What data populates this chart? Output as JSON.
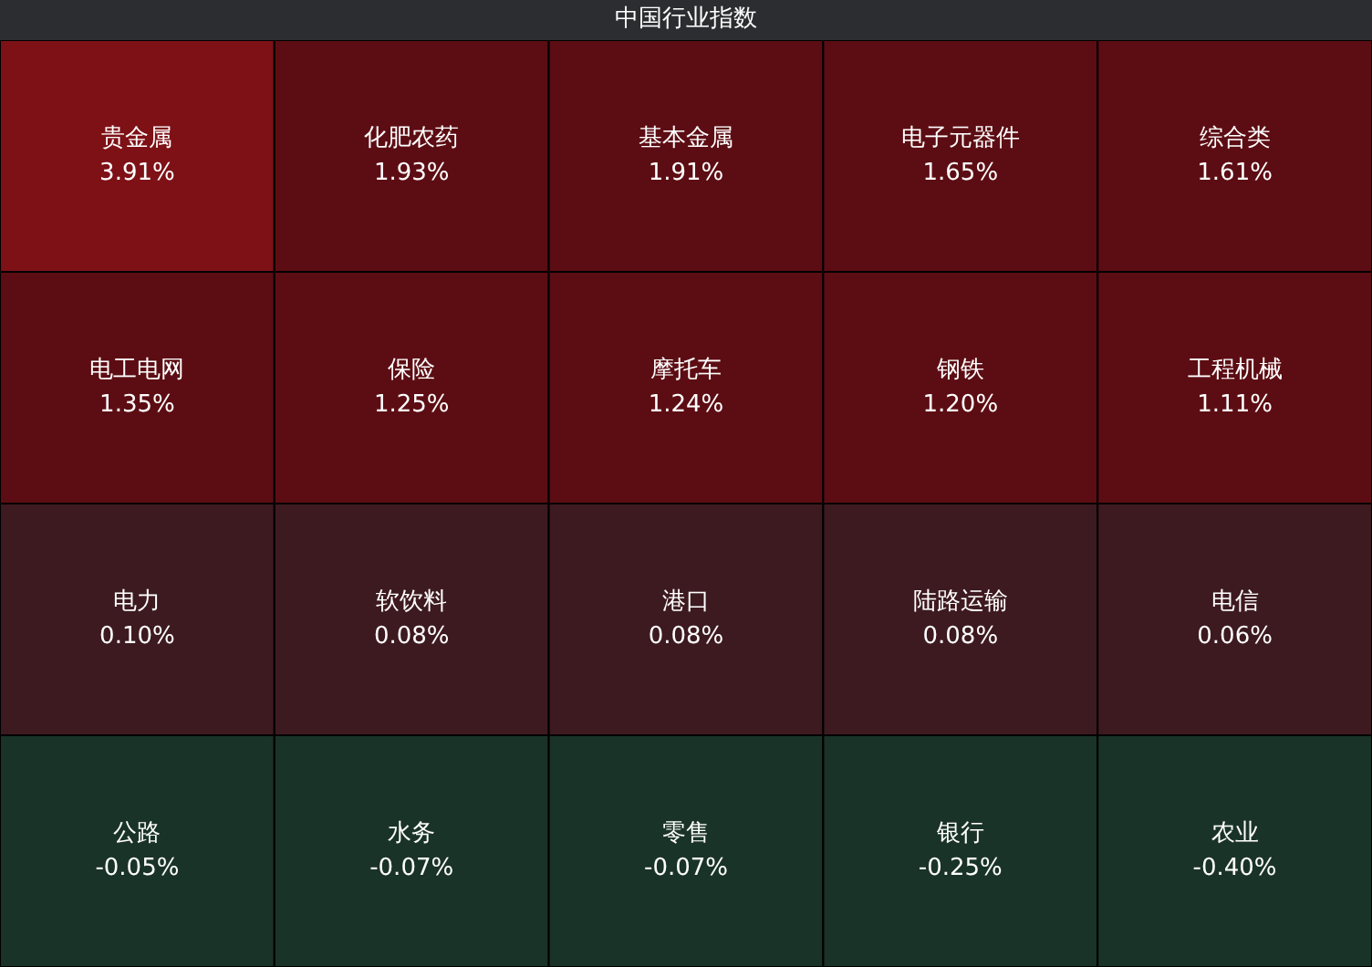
{
  "chart_data": {
    "type": "other",
    "title": "中国行业指数",
    "categories": [
      "贵金属",
      "化肥农药",
      "基本金属",
      "电子元器件",
      "综合类",
      "电工电网",
      "保险",
      "摩托车",
      "钢铁",
      "工程机械",
      "电力",
      "软饮料",
      "港口",
      "陆路运输",
      "电信",
      "公路",
      "水务",
      "零售",
      "银行",
      "农业"
    ],
    "values": [
      3.91,
      1.93,
      1.91,
      1.65,
      1.61,
      1.35,
      1.25,
      1.24,
      1.2,
      1.11,
      0.1,
      0.08,
      0.08,
      0.08,
      0.06,
      -0.05,
      -0.07,
      -0.07,
      -0.25,
      -0.4
    ],
    "value_labels": [
      "3.91%",
      "1.93%",
      "1.91%",
      "1.65%",
      "1.61%",
      "1.35%",
      "1.25%",
      "1.24%",
      "1.20%",
      "1.11%",
      "0.10%",
      "0.08%",
      "0.08%",
      "0.08%",
      "0.06%",
      "-0.05%",
      "-0.07%",
      "-0.07%",
      "-0.25%",
      "-0.40%"
    ],
    "colors": [
      "#7e1116",
      "#5c0d13",
      "#5c0d13",
      "#5c0d13",
      "#5c0d13",
      "#5c0d13",
      "#5c0d13",
      "#5c0d13",
      "#5c0d13",
      "#5c0d13",
      "#3d1a20",
      "#3d1a20",
      "#3d1a20",
      "#3d1a20",
      "#3d1a20",
      "#1a3328",
      "#1a3328",
      "#1a3328",
      "#1a3328",
      "#1a3328"
    ]
  }
}
